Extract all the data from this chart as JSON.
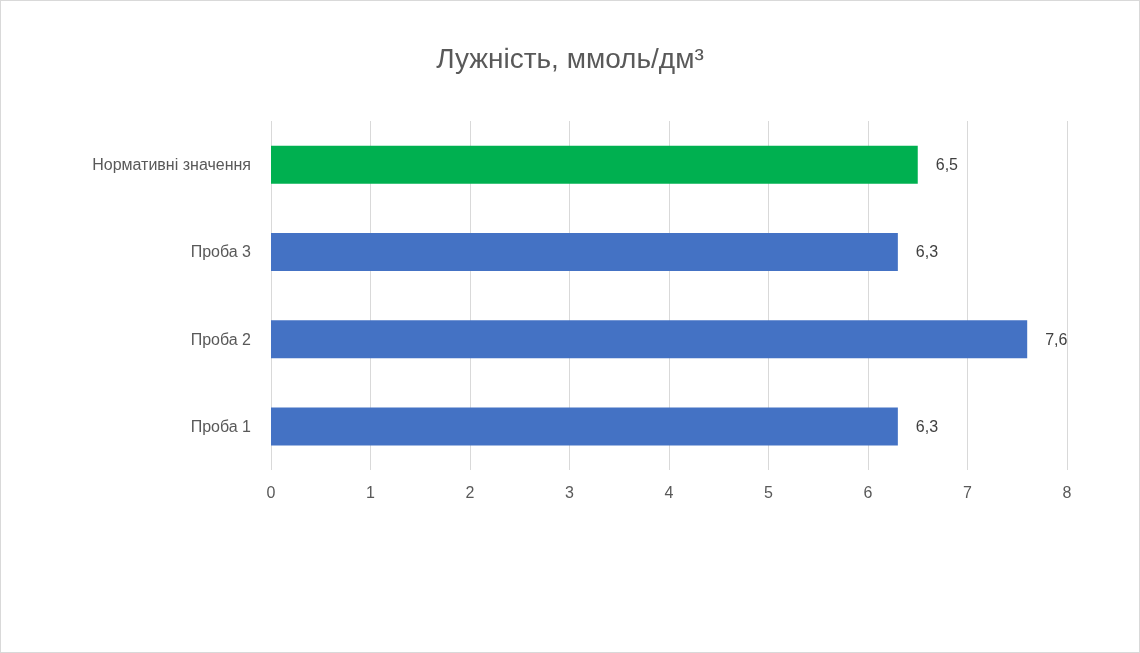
{
  "chart_data": {
    "type": "bar",
    "orientation": "horizontal",
    "title": "Лужність, ммоль/дм³",
    "categories": [
      "Нормативні значення",
      "Проба 3",
      "Проба 2",
      "Проба 1"
    ],
    "values": [
      6.5,
      6.3,
      7.6,
      6.3
    ],
    "colors": [
      "#00b050",
      "#4472c4",
      "#4472c4",
      "#4472c4"
    ],
    "value_labels": [
      "6,5",
      "6,3",
      "7,6",
      "6,3"
    ],
    "xlim": [
      0,
      8
    ],
    "xticks": [
      0,
      1,
      2,
      3,
      4,
      5,
      6,
      7,
      8
    ],
    "grid": "x"
  }
}
